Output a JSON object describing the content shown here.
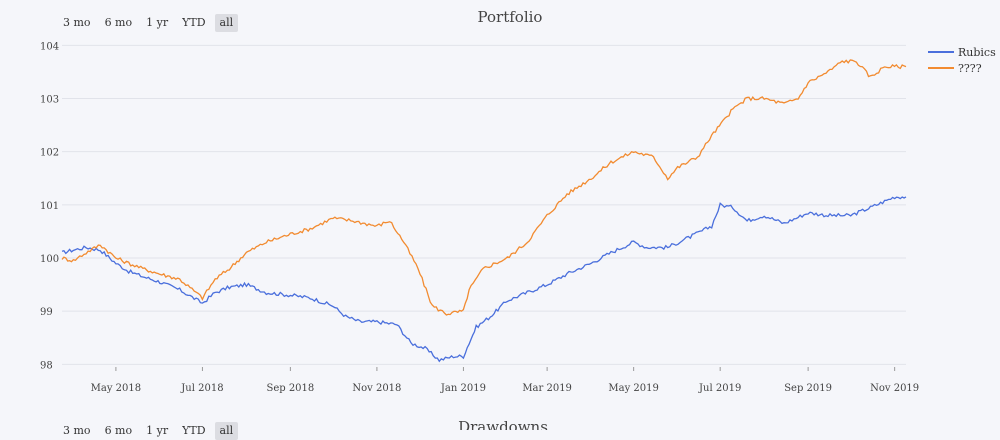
{
  "range_buttons": [
    "3 mo",
    "6 mo",
    "1 yr",
    "YTD",
    "all"
  ],
  "active_button": "all",
  "chart_data": {
    "type": "line",
    "title": "Portfolio",
    "xlabel": "",
    "ylabel": "",
    "ylim": [
      97.95,
      104.1
    ],
    "yticks": [
      98,
      99,
      100,
      101,
      102,
      103,
      104
    ],
    "xlim": [
      "2018-03-24",
      "2019-11-09"
    ],
    "xticks": [
      "May 2018",
      "Jul 2018",
      "Sep 2018",
      "Nov 2018",
      "Jan 2019",
      "Mar 2019",
      "May 2019",
      "Jul 2019",
      "Sep 2019",
      "Nov 2019"
    ],
    "xtick_dates": [
      "2018-05-01",
      "2018-07-01",
      "2018-09-01",
      "2018-11-01",
      "2019-01-01",
      "2019-03-01",
      "2019-05-01",
      "2019-07-01",
      "2019-09-01",
      "2019-11-01"
    ],
    "grid": "horizontal",
    "legend_position": "top-right",
    "series": [
      {
        "name": "Rubics",
        "color": "#4a6fdc",
        "points": [
          [
            "2018-03-24",
            100.1
          ],
          [
            "2018-04-01",
            100.15
          ],
          [
            "2018-04-10",
            100.2
          ],
          [
            "2018-04-20",
            100.15
          ],
          [
            "2018-05-01",
            99.9
          ],
          [
            "2018-05-10",
            99.75
          ],
          [
            "2018-05-20",
            99.65
          ],
          [
            "2018-06-01",
            99.55
          ],
          [
            "2018-06-15",
            99.4
          ],
          [
            "2018-07-01",
            99.15
          ],
          [
            "2018-07-10",
            99.35
          ],
          [
            "2018-07-20",
            99.45
          ],
          [
            "2018-08-01",
            99.5
          ],
          [
            "2018-08-15",
            99.35
          ],
          [
            "2018-09-01",
            99.3
          ],
          [
            "2018-09-15",
            99.25
          ],
          [
            "2018-10-01",
            99.1
          ],
          [
            "2018-10-10",
            98.9
          ],
          [
            "2018-10-20",
            98.8
          ],
          [
            "2018-11-01",
            98.8
          ],
          [
            "2018-11-15",
            98.75
          ],
          [
            "2018-11-25",
            98.4
          ],
          [
            "2018-12-05",
            98.3
          ],
          [
            "2018-12-15",
            98.08
          ],
          [
            "2018-12-25",
            98.15
          ],
          [
            "2019-01-01",
            98.15
          ],
          [
            "2019-01-05",
            98.4
          ],
          [
            "2019-01-10",
            98.7
          ],
          [
            "2019-01-20",
            98.9
          ],
          [
            "2019-02-01",
            99.2
          ],
          [
            "2019-02-15",
            99.35
          ],
          [
            "2019-03-01",
            99.5
          ],
          [
            "2019-03-15",
            99.7
          ],
          [
            "2019-04-01",
            99.9
          ],
          [
            "2019-04-15",
            100.1
          ],
          [
            "2019-05-01",
            100.3
          ],
          [
            "2019-05-10",
            100.2
          ],
          [
            "2019-05-25",
            100.2
          ],
          [
            "2019-06-10",
            100.4
          ],
          [
            "2019-06-25",
            100.6
          ],
          [
            "2019-07-01",
            101.0
          ],
          [
            "2019-07-10",
            100.95
          ],
          [
            "2019-07-20",
            100.7
          ],
          [
            "2019-08-01",
            100.8
          ],
          [
            "2019-08-15",
            100.65
          ],
          [
            "2019-09-01",
            100.85
          ],
          [
            "2019-09-15",
            100.8
          ],
          [
            "2019-10-01",
            100.8
          ],
          [
            "2019-10-15",
            100.95
          ],
          [
            "2019-11-01",
            101.15
          ],
          [
            "2019-11-09",
            101.15
          ]
        ]
      },
      {
        "name": "????",
        "color": "#f28b30",
        "points": [
          [
            "2018-03-24",
            100.0
          ],
          [
            "2018-04-01",
            99.95
          ],
          [
            "2018-04-10",
            100.1
          ],
          [
            "2018-04-20",
            100.25
          ],
          [
            "2018-05-01",
            100.0
          ],
          [
            "2018-05-10",
            99.9
          ],
          [
            "2018-05-20",
            99.8
          ],
          [
            "2018-06-01",
            99.7
          ],
          [
            "2018-06-15",
            99.6
          ],
          [
            "2018-07-01",
            99.25
          ],
          [
            "2018-07-10",
            99.6
          ],
          [
            "2018-07-20",
            99.8
          ],
          [
            "2018-08-01",
            100.1
          ],
          [
            "2018-08-15",
            100.3
          ],
          [
            "2018-09-01",
            100.45
          ],
          [
            "2018-09-15",
            100.55
          ],
          [
            "2018-10-01",
            100.75
          ],
          [
            "2018-10-15",
            100.7
          ],
          [
            "2018-11-01",
            100.6
          ],
          [
            "2018-11-10",
            100.7
          ],
          [
            "2018-11-20",
            100.3
          ],
          [
            "2018-11-30",
            99.8
          ],
          [
            "2018-12-10",
            99.1
          ],
          [
            "2018-12-20",
            98.95
          ],
          [
            "2019-01-01",
            99.0
          ],
          [
            "2019-01-05",
            99.4
          ],
          [
            "2019-01-15",
            99.8
          ],
          [
            "2019-02-01",
            100.0
          ],
          [
            "2019-02-15",
            100.3
          ],
          [
            "2019-03-01",
            100.8
          ],
          [
            "2019-03-15",
            101.2
          ],
          [
            "2019-04-01",
            101.5
          ],
          [
            "2019-04-15",
            101.8
          ],
          [
            "2019-05-01",
            102.0
          ],
          [
            "2019-05-15",
            101.9
          ],
          [
            "2019-05-25",
            101.5
          ],
          [
            "2019-06-01",
            101.7
          ],
          [
            "2019-06-15",
            101.9
          ],
          [
            "2019-06-25",
            102.3
          ],
          [
            "2019-07-10",
            102.8
          ],
          [
            "2019-07-20",
            103.0
          ],
          [
            "2019-08-01",
            103.0
          ],
          [
            "2019-08-15",
            102.9
          ],
          [
            "2019-08-25",
            103.0
          ],
          [
            "2019-09-01",
            103.3
          ],
          [
            "2019-09-15",
            103.5
          ],
          [
            "2019-09-25",
            103.7
          ],
          [
            "2019-10-05",
            103.7
          ],
          [
            "2019-10-15",
            103.4
          ],
          [
            "2019-10-25",
            103.6
          ],
          [
            "2019-11-05",
            103.6
          ],
          [
            "2019-11-09",
            103.6
          ]
        ]
      }
    ]
  },
  "second_chart": {
    "title": "Drawdowns"
  }
}
